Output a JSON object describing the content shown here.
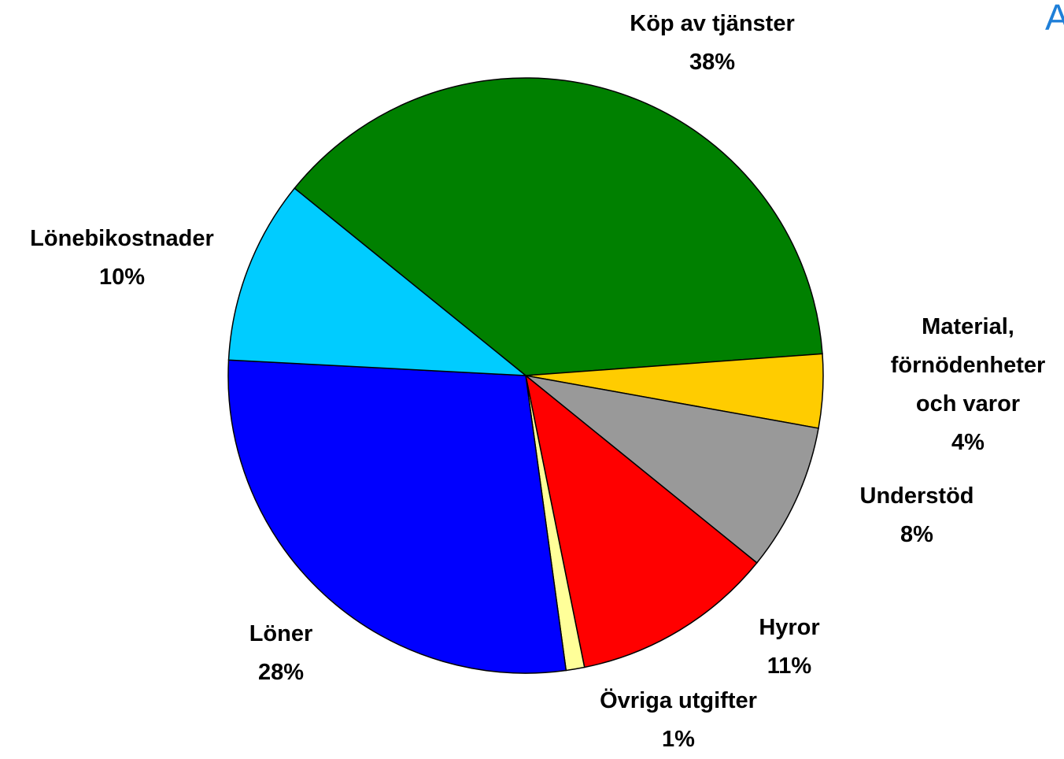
{
  "chart_data": {
    "type": "pie",
    "categories": [
      "Köp av tjänster",
      "Material, förnödenheter och varor",
      "Understöd",
      "Hyror",
      "Övriga utgifter",
      "Löner",
      "Lönebikostnader"
    ],
    "values": [
      38,
      4,
      8,
      11,
      1,
      28,
      10
    ],
    "value_labels": [
      "38%",
      "4%",
      "8%",
      "11%",
      "1%",
      "28%",
      "10%"
    ],
    "colors": [
      "#008000",
      "#ffcc00",
      "#999999",
      "#ff0000",
      "#ffff99",
      "#0000ff",
      "#00ccff"
    ]
  },
  "corner_text": "A"
}
